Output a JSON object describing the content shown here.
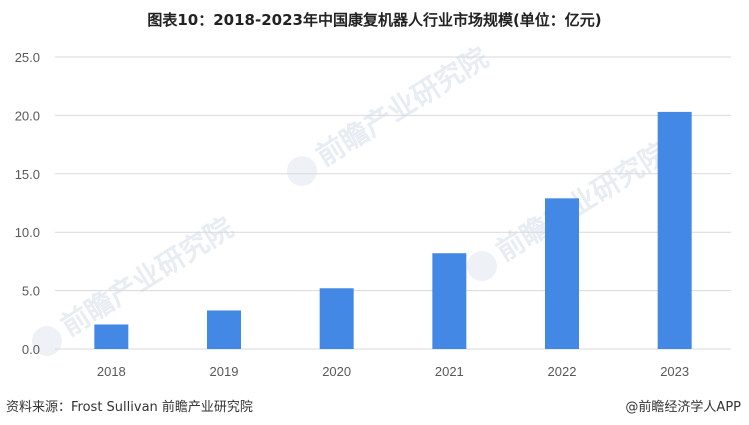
{
  "page": {
    "title": "图表10：2018-2023年中国康复机器人行业市场规模(单位：亿元)",
    "source": "资料来源：Frost Sullivan 前瞻产业研究院",
    "brand": "@前瞻经济学人APP",
    "watermark_text": "前瞻产业研究院"
  },
  "colors": {
    "bar": "#4388e4",
    "grid": "#d9d9d9",
    "axis_text": "#595959",
    "watermark": "#e8edf3"
  },
  "chart_data": {
    "type": "bar",
    "title": "图表10：2018-2023年中国康复机器人行业市场规模(单位：亿元)",
    "categories": [
      "2018",
      "2019",
      "2020",
      "2021",
      "2022",
      "2023"
    ],
    "values": [
      2.1,
      3.3,
      5.2,
      8.2,
      12.9,
      20.3
    ],
    "ylim": [
      0,
      25
    ],
    "yticks": [
      "0.0",
      "5.0",
      "10.0",
      "15.0",
      "20.0",
      "25.0"
    ],
    "xlabel": "",
    "ylabel": "",
    "grid": true,
    "legend": "none"
  }
}
